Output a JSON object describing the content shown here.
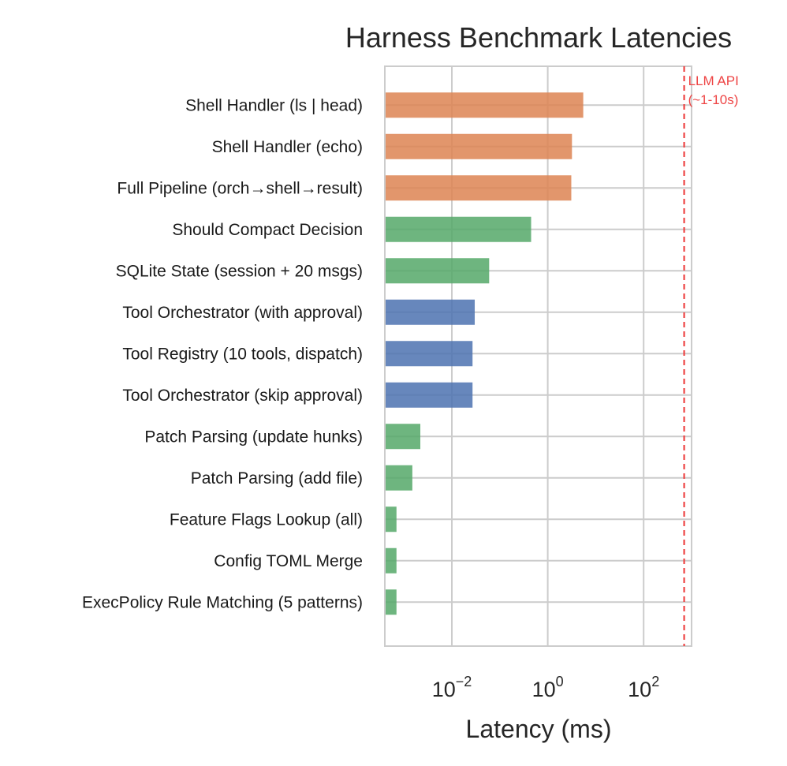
{
  "chart_data": {
    "type": "bar",
    "orientation": "horizontal",
    "title": "Harness Benchmark Latencies",
    "xlabel": "Latency (ms)",
    "ylabel": "",
    "x_scale": "log",
    "xlim": [
      0.0004,
      1000
    ],
    "x_ticks": [
      {
        "value": 0.01,
        "base": "10",
        "exp": "−2"
      },
      {
        "value": 1,
        "base": "10",
        "exp": "0"
      },
      {
        "value": 100,
        "base": "10",
        "exp": "2"
      }
    ],
    "grid": true,
    "categories": [
      "Shell Handler (ls | head)",
      "Shell Handler (echo)",
      "Full Pipeline (orch→shell→result)",
      "Should Compact Decision",
      "SQLite State (session + 20 msgs)",
      "Tool Orchestrator (with approval)",
      "Tool Registry (10 tools, dispatch)",
      "Tool Orchestrator (skip approval)",
      "Patch Parsing (update hunks)",
      "Patch Parsing (add file)",
      "Feature Flags Lookup (all)",
      "Config TOML Merge",
      "ExecPolicy Rule Matching (5 patterns)"
    ],
    "values": [
      5.5,
      3.2,
      3.1,
      0.45,
      0.06,
      0.03,
      0.027,
      0.027,
      0.0022,
      0.0015,
      0.0007,
      0.0007,
      0.0007
    ],
    "bar_colors": [
      "#dd8452",
      "#dd8452",
      "#dd8452",
      "#55a868",
      "#55a868",
      "#4c72b0",
      "#4c72b0",
      "#4c72b0",
      "#55a868",
      "#55a868",
      "#55a868",
      "#55a868",
      "#55a868"
    ],
    "reference_line": {
      "value": 700,
      "label_line1": "LLM API",
      "label_line2": "(~1-10s)",
      "color": "#ee4444",
      "style": "dashed"
    }
  }
}
